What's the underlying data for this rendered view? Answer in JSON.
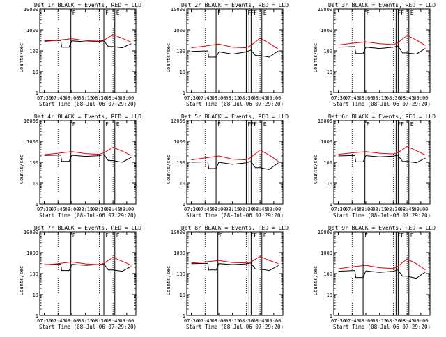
{
  "chart_data": [
    {
      "type": "line",
      "title": "Det 1r BLACK = Events, RED = LLD",
      "xlabel": "Start Time (08-Jul-06 07:29:20)",
      "ylabel": "Counts/sec",
      "yscale": "log",
      "ylim": [
        1,
        10000
      ],
      "xticks": [
        "07:30",
        "07:45",
        "08:00",
        "08:15",
        "08:30",
        "08:45",
        "09:00"
      ],
      "yticks": [
        "1",
        "10",
        "100",
        "1000",
        "10000"
      ],
      "markers": [
        {
          "x": "07:59",
          "text": "F"
        },
        {
          "x": "08:35",
          "text": "F"
        },
        {
          "x": "08:47",
          "text": "E"
        }
      ],
      "series": [
        {
          "color": "#000000",
          "x": [
            "07:30",
            "07:48",
            "07:49",
            "07:57",
            "08:00",
            "08:15",
            "08:30",
            "08:35",
            "08:40",
            "08:45",
            "08:55",
            "09:05"
          ],
          "values": [
            310,
            315,
            150,
            150,
            300,
            270,
            280,
            300,
            160,
            160,
            140,
            220
          ]
        },
        {
          "color": "#e00000",
          "x": [
            "07:30",
            "07:45",
            "08:00",
            "08:15",
            "08:30",
            "08:35",
            "08:45",
            "08:55",
            "09:05"
          ],
          "values": [
            280,
            320,
            380,
            310,
            290,
            320,
            600,
            400,
            260
          ]
        }
      ]
    },
    {
      "type": "line",
      "title": "Det 2r BLACK = Events, RED = LLD",
      "xlabel": "Start Time (08-Jul-06 07:29:20)",
      "ylabel": "Counts/sec",
      "yscale": "log",
      "ylim": [
        1,
        10000
      ],
      "xticks": [
        "07:30",
        "07:45",
        "08:00",
        "08:15",
        "08:30",
        "08:45",
        "09:00"
      ],
      "yticks": [
        "1",
        "10",
        "100",
        "1000",
        "10000"
      ],
      "markers": [
        {
          "x": "07:57",
          "text": "F"
        },
        {
          "x": "08:30",
          "text": "F"
        },
        {
          "x": "08:33",
          "text": "FF"
        },
        {
          "x": "08:47",
          "text": "E"
        }
      ],
      "series": [
        {
          "color": "#000000",
          "x": [
            "07:30",
            "07:48",
            "07:49",
            "07:57",
            "08:00",
            "08:15",
            "08:30",
            "08:35",
            "08:40",
            "08:45",
            "08:55",
            "09:05"
          ],
          "values": [
            95,
            100,
            50,
            50,
            90,
            70,
            90,
            110,
            60,
            60,
            50,
            100
          ]
        },
        {
          "color": "#e00000",
          "x": [
            "07:30",
            "07:45",
            "08:00",
            "08:15",
            "08:30",
            "08:35",
            "08:45",
            "08:55",
            "09:05"
          ],
          "values": [
            140,
            170,
            210,
            150,
            140,
            180,
            400,
            230,
            120
          ]
        }
      ]
    },
    {
      "type": "line",
      "title": "Det 3r BLACK = Events, RED = LLD",
      "xlabel": "Start Time (08-Jul-06 07:29:20)",
      "ylabel": "Counts/sec",
      "yscale": "log",
      "ylim": [
        1,
        10000
      ],
      "xticks": [
        "07:30",
        "07:45",
        "08:00",
        "08:15",
        "08:30",
        "08:45",
        "09:00"
      ],
      "yticks": [
        "1",
        "10",
        "100",
        "1000",
        "10000"
      ],
      "markers": [
        {
          "x": "07:59",
          "text": "F"
        },
        {
          "x": "08:33",
          "text": "FF"
        },
        {
          "x": "08:47",
          "text": "E"
        }
      ],
      "series": [
        {
          "color": "#000000",
          "x": [
            "07:30",
            "07:48",
            "07:49",
            "07:57",
            "08:00",
            "08:15",
            "08:30",
            "08:35",
            "08:40",
            "08:45",
            "08:55",
            "09:05"
          ],
          "values": [
            150,
            160,
            75,
            75,
            150,
            130,
            150,
            170,
            80,
            80,
            70,
            130
          ]
        },
        {
          "color": "#e00000",
          "x": [
            "07:30",
            "07:45",
            "08:00",
            "08:15",
            "08:30",
            "08:35",
            "08:45",
            "08:55",
            "09:05"
          ],
          "values": [
            190,
            230,
            270,
            220,
            200,
            240,
            550,
            330,
            180
          ]
        }
      ]
    },
    {
      "type": "line",
      "title": "Det 4r BLACK = Events, RED = LLD",
      "xlabel": "Start Time (08-Jul-06 07:29:20)",
      "ylabel": "Counts/sec",
      "yscale": "log",
      "ylim": [
        1,
        10000
      ],
      "xticks": [
        "07:30",
        "07:45",
        "08:00",
        "08:15",
        "08:30",
        "08:45",
        "09:00"
      ],
      "yticks": [
        "1",
        "10",
        "100",
        "1000",
        "10000"
      ],
      "markers": [
        {
          "x": "07:59",
          "text": "F"
        },
        {
          "x": "08:35",
          "text": "F"
        },
        {
          "x": "08:47",
          "text": "E"
        }
      ],
      "series": [
        {
          "color": "#000000",
          "x": [
            "07:30",
            "07:48",
            "07:49",
            "07:57",
            "08:00",
            "08:15",
            "08:30",
            "08:35",
            "08:40",
            "08:45",
            "08:55",
            "09:05"
          ],
          "values": [
            210,
            220,
            110,
            110,
            215,
            190,
            205,
            230,
            120,
            120,
            100,
            170
          ]
        },
        {
          "color": "#e00000",
          "x": [
            "07:30",
            "07:45",
            "08:00",
            "08:15",
            "08:30",
            "08:35",
            "08:45",
            "08:55",
            "09:05"
          ],
          "values": [
            230,
            270,
            320,
            260,
            240,
            280,
            520,
            340,
            210
          ]
        }
      ]
    },
    {
      "type": "line",
      "title": "Det 5r BLACK = Events, RED = LLD",
      "xlabel": "Start Time (08-Jul-06 07:29:20)",
      "ylabel": "Counts/sec",
      "yscale": "log",
      "ylim": [
        1,
        10000
      ],
      "xticks": [
        "07:30",
        "07:45",
        "08:00",
        "08:15",
        "08:30",
        "08:45",
        "09:00"
      ],
      "yticks": [
        "1",
        "10",
        "100",
        "1000",
        "10000"
      ],
      "markers": [
        {
          "x": "07:57",
          "text": "F"
        },
        {
          "x": "08:30",
          "text": "F"
        },
        {
          "x": "08:33",
          "text": "FF"
        },
        {
          "x": "08:47",
          "text": "E"
        }
      ],
      "series": [
        {
          "color": "#000000",
          "x": [
            "07:30",
            "07:48",
            "07:49",
            "07:57",
            "08:00",
            "08:15",
            "08:30",
            "08:35",
            "08:40",
            "08:45",
            "08:55",
            "09:05"
          ],
          "values": [
            100,
            105,
            50,
            50,
            100,
            80,
            95,
            110,
            55,
            55,
            45,
            95
          ]
        },
        {
          "color": "#e00000",
          "x": [
            "07:30",
            "07:45",
            "08:00",
            "08:15",
            "08:30",
            "08:35",
            "08:45",
            "08:55",
            "09:05"
          ],
          "values": [
            130,
            160,
            200,
            140,
            130,
            170,
            380,
            220,
            110
          ]
        }
      ]
    },
    {
      "type": "line",
      "title": "Det 6r BLACK = Events, RED = LLD",
      "xlabel": "Start Time (08-Jul-06 07:29:20)",
      "ylabel": "Counts/sec",
      "yscale": "log",
      "ylim": [
        1,
        10000
      ],
      "xticks": [
        "07:30",
        "07:45",
        "08:00",
        "08:15",
        "08:30",
        "08:45",
        "09:00"
      ],
      "yticks": [
        "1",
        "10",
        "100",
        "1000",
        "10000"
      ],
      "markers": [
        {
          "x": "07:59",
          "text": "F"
        },
        {
          "x": "08:33",
          "text": "FF"
        },
        {
          "x": "08:47",
          "text": "E"
        }
      ],
      "series": [
        {
          "color": "#000000",
          "x": [
            "07:30",
            "07:48",
            "07:49",
            "07:57",
            "08:00",
            "08:15",
            "08:30",
            "08:35",
            "08:40",
            "08:45",
            "08:55",
            "09:05"
          ],
          "values": [
            200,
            210,
            105,
            105,
            205,
            180,
            195,
            215,
            110,
            110,
            95,
            160
          ]
        },
        {
          "color": "#e00000",
          "x": [
            "07:30",
            "07:45",
            "08:00",
            "08:15",
            "08:30",
            "08:35",
            "08:45",
            "08:55",
            "09:05"
          ],
          "values": [
            240,
            280,
            320,
            270,
            250,
            290,
            560,
            360,
            220
          ]
        }
      ]
    },
    {
      "type": "line",
      "title": "Det 7r BLACK = Events, RED = LLD",
      "xlabel": "Start Time (08-Jul-06 07:29:20)",
      "ylabel": "Counts/sec",
      "yscale": "log",
      "ylim": [
        1,
        10000
      ],
      "xticks": [
        "07:30",
        "07:45",
        "08:00",
        "08:15",
        "08:30",
        "08:45",
        "09:00"
      ],
      "yticks": [
        "1",
        "10",
        "100",
        "1000",
        "10000"
      ],
      "markers": [
        {
          "x": "07:59",
          "text": "F"
        },
        {
          "x": "08:35",
          "text": "F"
        },
        {
          "x": "08:47",
          "text": "E"
        }
      ],
      "series": [
        {
          "color": "#000000",
          "x": [
            "07:30",
            "07:48",
            "07:49",
            "07:57",
            "08:00",
            "08:15",
            "08:30",
            "08:35",
            "08:40",
            "08:45",
            "08:55",
            "09:05"
          ],
          "values": [
            270,
            280,
            140,
            140,
            275,
            250,
            265,
            290,
            150,
            150,
            130,
            220
          ]
        },
        {
          "color": "#e00000",
          "x": [
            "07:30",
            "07:45",
            "08:00",
            "08:15",
            "08:30",
            "08:35",
            "08:45",
            "08:55",
            "09:05"
          ],
          "values": [
            260,
            300,
            360,
            290,
            270,
            310,
            600,
            390,
            250
          ]
        }
      ]
    },
    {
      "type": "line",
      "title": "Det 8r BLACK = Events, RED = LLD",
      "xlabel": "Start Time (08-Jul-06 07:29:20)",
      "ylabel": "Counts/sec",
      "yscale": "log",
      "ylim": [
        1,
        10000
      ],
      "xticks": [
        "07:30",
        "07:45",
        "08:00",
        "08:15",
        "08:30",
        "08:45",
        "09:00"
      ],
      "yticks": [
        "1",
        "10",
        "100",
        "1000",
        "10000"
      ],
      "markers": [
        {
          "x": "07:59",
          "text": "F"
        },
        {
          "x": "08:33",
          "text": "FF"
        },
        {
          "x": "08:47",
          "text": "E"
        }
      ],
      "series": [
        {
          "color": "#000000",
          "x": [
            "07:30",
            "07:48",
            "07:49",
            "07:57",
            "08:00",
            "08:15",
            "08:30",
            "08:35",
            "08:40",
            "08:45",
            "08:55",
            "09:05"
          ],
          "values": [
            300,
            310,
            150,
            150,
            300,
            270,
            290,
            320,
            165,
            165,
            140,
            240
          ]
        },
        {
          "color": "#e00000",
          "x": [
            "07:30",
            "07:45",
            "08:00",
            "08:15",
            "08:30",
            "08:35",
            "08:45",
            "08:55",
            "09:05"
          ],
          "values": [
            320,
            360,
            420,
            340,
            320,
            360,
            650,
            430,
            300
          ]
        }
      ]
    },
    {
      "type": "line",
      "title": "Det 9r BLACK = Events, RED = LLD",
      "xlabel": "Start Time (08-Jul-06 07:29:20)",
      "ylabel": "Counts/sec",
      "yscale": "log",
      "ylim": [
        1,
        10000
      ],
      "xticks": [
        "07:30",
        "07:45",
        "08:00",
        "08:15",
        "08:30",
        "08:45",
        "09:00"
      ],
      "yticks": [
        "1",
        "10",
        "100",
        "1000",
        "10000"
      ],
      "markers": [
        {
          "x": "07:57",
          "text": "F"
        },
        {
          "x": "08:33",
          "text": "FF"
        },
        {
          "x": "08:47",
          "text": "E"
        }
      ],
      "series": [
        {
          "color": "#000000",
          "x": [
            "07:30",
            "07:48",
            "07:49",
            "07:57",
            "08:00",
            "08:15",
            "08:30",
            "08:35",
            "08:40",
            "08:45",
            "08:55",
            "09:05"
          ],
          "values": [
            130,
            140,
            65,
            65,
            135,
            115,
            130,
            150,
            75,
            75,
            60,
            120
          ]
        },
        {
          "color": "#e00000",
          "x": [
            "07:30",
            "07:45",
            "08:00",
            "08:15",
            "08:30",
            "08:35",
            "08:45",
            "08:55",
            "09:05"
          ],
          "values": [
            170,
            210,
            250,
            190,
            175,
            220,
            500,
            300,
            150
          ]
        }
      ]
    }
  ]
}
